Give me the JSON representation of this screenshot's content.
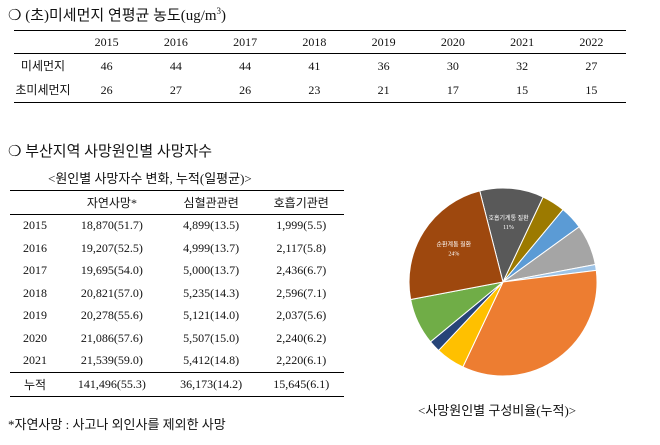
{
  "section1": {
    "bullet": "❍",
    "title": "(초)미세먼지 연평균 농도(ug/m",
    "title_sup": "3",
    "title_end": ")",
    "table": {
      "header": [
        "2015",
        "2016",
        "2017",
        "2018",
        "2019",
        "2020",
        "2021",
        "2022"
      ],
      "rows": [
        {
          "label": "미세먼지",
          "values": [
            46,
            44,
            44,
            41,
            36,
            30,
            32,
            27
          ]
        },
        {
          "label": "초미세먼지",
          "values": [
            26,
            27,
            26,
            23,
            21,
            17,
            15,
            15
          ]
        }
      ]
    }
  },
  "section2": {
    "bullet": "❍",
    "title": "부산지역 사망원인별 사망자수",
    "table_caption": "<원인별 사망자수 변화, 누적(일평균)>",
    "table": {
      "header": [
        "자연사망*",
        "심혈관관련",
        "호흡기관련"
      ],
      "rows": [
        [
          "2015",
          "18,870(51.7)",
          "4,899(13.5)",
          "1,999(5.5)"
        ],
        [
          "2016",
          "19,207(52.5)",
          "4,999(13.7)",
          "2,117(5.8)"
        ],
        [
          "2017",
          "19,695(54.0)",
          "5,000(13.7)",
          "2,436(6.7)"
        ],
        [
          "2018",
          "20,821(57.0)",
          "5,235(14.3)",
          "2,596(7.1)"
        ],
        [
          "2019",
          "20,278(55.6)",
          "5,121(14.0)",
          "2,037(5.6)"
        ],
        [
          "2020",
          "21,086(57.6)",
          "5,507(15.0)",
          "2,240(6.2)"
        ],
        [
          "2021",
          "21,539(59.0)",
          "5,412(14.8)",
          "2,220(6.1)"
        ],
        [
          "누적",
          "141,496(55.3)",
          "36,173(14.2)",
          "15,645(6.1)"
        ]
      ]
    },
    "footnote": "*자연사망 : 사고나 외인사를 제외한 사망"
  },
  "pie": {
    "caption": "<사망원인별 구성비율(누적)>",
    "slices": [
      {
        "label": "호흡기계통 질환",
        "value": 11,
        "value_label": "11%",
        "color": "#595959"
      },
      {
        "value": 4,
        "color": "#9c7a00"
      },
      {
        "value": 4,
        "color": "#5b9bd5"
      },
      {
        "value": 7,
        "color": "#a5a5a5"
      },
      {
        "value": 1,
        "color": "#9dc3e6"
      },
      {
        "value": 34,
        "color": "#ed7d31"
      },
      {
        "value": 5,
        "color": "#ffc000"
      },
      {
        "value": 2,
        "color": "#264478"
      },
      {
        "value": 8,
        "color": "#70ad47"
      },
      {
        "label": "순환계통 질환",
        "value": 24,
        "value_label": "24%",
        "color": "#9e480e"
      }
    ]
  }
}
